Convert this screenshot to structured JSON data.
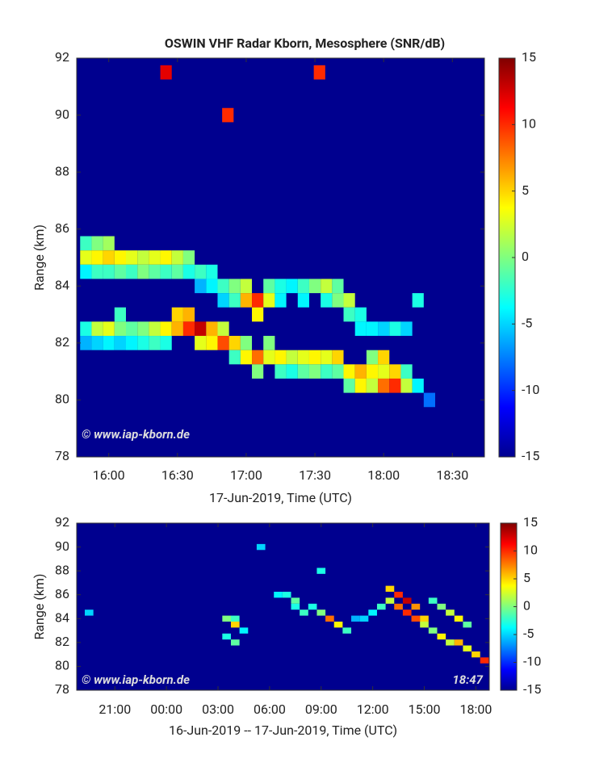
{
  "chart_data": [
    {
      "type": "heatmap",
      "title": "OSWIN VHF Radar Kborn, Mesosphere (SNR/dB)",
      "xlabel": "17-Jun-2019, Time (UTC)",
      "ylabel": "Range (km)",
      "xlim": [
        946,
        1124
      ],
      "xticks": [
        {
          "value": 960,
          "label": "16:00"
        },
        {
          "value": 990,
          "label": "16:30"
        },
        {
          "value": 1020,
          "label": "17:00"
        },
        {
          "value": 1050,
          "label": "17:30"
        },
        {
          "value": 1080,
          "label": "18:00"
        },
        {
          "value": 1110,
          "label": "18:30"
        }
      ],
      "ylim": [
        78,
        92
      ],
      "yticks": [
        78,
        80,
        82,
        84,
        86,
        88,
        90,
        92
      ],
      "clim": [
        -15,
        15
      ],
      "cticks": [
        -15,
        -10,
        -5,
        0,
        5,
        10,
        15
      ],
      "annotations": [
        "© www.iap-kborn.de"
      ],
      "cells": [
        [
          950,
          85.5,
          -2
        ],
        [
          950,
          85,
          3
        ],
        [
          950,
          84.5,
          -4
        ],
        [
          950,
          82.5,
          -3
        ],
        [
          950,
          82,
          -6
        ],
        [
          955,
          85.5,
          0
        ],
        [
          955,
          85,
          4
        ],
        [
          955,
          84.5,
          -2
        ],
        [
          955,
          82.5,
          2
        ],
        [
          955,
          82,
          -5
        ],
        [
          960,
          85.5,
          1
        ],
        [
          960,
          85,
          5
        ],
        [
          960,
          84.5,
          -2
        ],
        [
          960,
          82.5,
          3
        ],
        [
          960,
          82,
          -4
        ],
        [
          965,
          85,
          4
        ],
        [
          965,
          84.5,
          -1
        ],
        [
          965,
          83,
          -2
        ],
        [
          965,
          82.5,
          0
        ],
        [
          965,
          82,
          -5
        ],
        [
          970,
          85,
          3
        ],
        [
          970,
          84.5,
          -2
        ],
        [
          970,
          82.5,
          -1
        ],
        [
          970,
          82,
          -4
        ],
        [
          975,
          85,
          2
        ],
        [
          975,
          84.5,
          0
        ],
        [
          975,
          82.5,
          0
        ],
        [
          975,
          82,
          -3
        ],
        [
          980,
          85,
          3
        ],
        [
          980,
          84.5,
          -1
        ],
        [
          980,
          82.5,
          2
        ],
        [
          980,
          82,
          -2
        ],
        [
          985,
          85,
          4
        ],
        [
          985,
          84.5,
          -2
        ],
        [
          985,
          82.5,
          4
        ],
        [
          985,
          82,
          -3
        ],
        [
          990,
          85,
          2
        ],
        [
          990,
          84.5,
          -1
        ],
        [
          990,
          83,
          5
        ],
        [
          990,
          82.5,
          6
        ],
        [
          995,
          85,
          0
        ],
        [
          995,
          84.5,
          -3
        ],
        [
          995,
          83,
          6
        ],
        [
          995,
          82.5,
          10
        ],
        [
          1000,
          84.5,
          -2
        ],
        [
          1000,
          84,
          -6
        ],
        [
          1000,
          82.5,
          13
        ],
        [
          1000,
          82,
          3
        ],
        [
          1005,
          84.5,
          -3
        ],
        [
          1005,
          84,
          -4
        ],
        [
          1005,
          82.5,
          6
        ],
        [
          1005,
          82,
          4
        ],
        [
          1010,
          84,
          -2
        ],
        [
          1010,
          83.5,
          -5
        ],
        [
          1010,
          82.5,
          2
        ],
        [
          1010,
          82,
          9
        ],
        [
          1015,
          84,
          0
        ],
        [
          1015,
          83.5,
          -2
        ],
        [
          1015,
          82,
          5
        ],
        [
          1015,
          81.5,
          -2
        ],
        [
          1020,
          84,
          2
        ],
        [
          1020,
          83.5,
          6
        ],
        [
          1020,
          82,
          0
        ],
        [
          1020,
          81.5,
          4
        ],
        [
          1025,
          83.5,
          10
        ],
        [
          1025,
          83,
          4
        ],
        [
          1025,
          81.5,
          8
        ],
        [
          1025,
          81,
          0
        ],
        [
          1030,
          84,
          -1
        ],
        [
          1030,
          83.5,
          3
        ],
        [
          1030,
          82,
          0
        ],
        [
          1030,
          81.5,
          3
        ],
        [
          1035,
          84,
          -3
        ],
        [
          1035,
          83.5,
          -4
        ],
        [
          1035,
          81.5,
          4
        ],
        [
          1035,
          81,
          -2
        ],
        [
          1040,
          84,
          -4
        ],
        [
          1040,
          81.5,
          2
        ],
        [
          1040,
          81,
          -3
        ],
        [
          1045,
          84,
          -2
        ],
        [
          1045,
          83.5,
          -4
        ],
        [
          1045,
          81.5,
          3
        ],
        [
          1045,
          81,
          -1
        ],
        [
          1050,
          84,
          0
        ],
        [
          1050,
          81.5,
          4
        ],
        [
          1050,
          81,
          0
        ],
        [
          1055,
          84,
          2
        ],
        [
          1055,
          83.5,
          -3
        ],
        [
          1055,
          81.5,
          3
        ],
        [
          1055,
          81,
          -2
        ],
        [
          1060,
          84,
          -1
        ],
        [
          1060,
          83.5,
          0
        ],
        [
          1060,
          81.5,
          5
        ],
        [
          1060,
          81,
          -1
        ],
        [
          1065,
          83.5,
          2
        ],
        [
          1065,
          83,
          -2
        ],
        [
          1065,
          81,
          4
        ],
        [
          1065,
          80.5,
          -1
        ],
        [
          1070,
          83,
          -3
        ],
        [
          1070,
          82.5,
          -4
        ],
        [
          1070,
          81,
          6
        ],
        [
          1070,
          80.5,
          4
        ],
        [
          1075,
          82.5,
          -4
        ],
        [
          1075,
          81.5,
          0
        ],
        [
          1075,
          81,
          4
        ],
        [
          1075,
          80.5,
          2
        ],
        [
          1080,
          82.5,
          -5
        ],
        [
          1080,
          81.5,
          5
        ],
        [
          1080,
          81,
          3
        ],
        [
          1080,
          80.5,
          8
        ],
        [
          1085,
          82.5,
          -3
        ],
        [
          1085,
          81,
          5
        ],
        [
          1085,
          80.5,
          10
        ],
        [
          1090,
          82.5,
          -5
        ],
        [
          1090,
          81,
          -2
        ],
        [
          1090,
          80.5,
          2
        ],
        [
          1095,
          80.5,
          -4
        ],
        [
          1100,
          80,
          -8
        ],
        [
          985,
          91.5,
          12
        ],
        [
          1052,
          91.5,
          10
        ],
        [
          1012,
          90,
          10
        ],
        [
          1095,
          83.5,
          -3
        ]
      ]
    },
    {
      "type": "heatmap",
      "xlabel": "16-Jun-2019 -- 17-Jun-2019, Time (UTC)",
      "ylabel": "Range (km)",
      "xlim": [
        18.78,
        42.78
      ],
      "xticks": [
        {
          "value": 21,
          "label": "21:00"
        },
        {
          "value": 24,
          "label": "00:00"
        },
        {
          "value": 27,
          "label": "03:00"
        },
        {
          "value": 30,
          "label": "06:00"
        },
        {
          "value": 33,
          "label": "09:00"
        },
        {
          "value": 36,
          "label": "12:00"
        },
        {
          "value": 39,
          "label": "15:00"
        },
        {
          "value": 42,
          "label": "18:00"
        }
      ],
      "ylim": [
        78,
        92
      ],
      "yticks": [
        78,
        80,
        82,
        84,
        86,
        88,
        90,
        92
      ],
      "clim": [
        -15,
        15
      ],
      "cticks": [
        -15,
        -10,
        -5,
        0,
        5,
        10,
        15
      ],
      "annotations": [
        "© www.iap-kborn.de",
        "18:47"
      ],
      "cells": [
        [
          19.5,
          84.5,
          -5
        ],
        [
          27.5,
          84,
          0
        ],
        [
          28,
          83.5,
          5
        ],
        [
          28,
          84,
          -2
        ],
        [
          27.5,
          82.5,
          -3
        ],
        [
          28,
          82,
          -1
        ],
        [
          28.5,
          83,
          -4
        ],
        [
          30.5,
          86,
          -4
        ],
        [
          31,
          86,
          -3
        ],
        [
          31.5,
          85.5,
          -1
        ],
        [
          31.5,
          85,
          -3
        ],
        [
          32,
          84.5,
          -2
        ],
        [
          32.5,
          85,
          -3
        ],
        [
          33,
          84.5,
          0
        ],
        [
          33.5,
          84,
          8
        ],
        [
          34,
          83.5,
          4
        ],
        [
          34.5,
          83,
          -2
        ],
        [
          35,
          84,
          -6
        ],
        [
          35.5,
          84,
          -5
        ],
        [
          36,
          84.5,
          -4
        ],
        [
          36.5,
          85,
          -2
        ],
        [
          37,
          86.5,
          5
        ],
        [
          37,
          85.5,
          2
        ],
        [
          37.5,
          86,
          10
        ],
        [
          37.5,
          85,
          8
        ],
        [
          38,
          85.5,
          13
        ],
        [
          38,
          84.5,
          10
        ],
        [
          38.5,
          85,
          7
        ],
        [
          38.5,
          84,
          9
        ],
        [
          39,
          84,
          5
        ],
        [
          39,
          83.5,
          2
        ],
        [
          39.5,
          85.5,
          -2
        ],
        [
          40,
          85,
          0
        ],
        [
          40.5,
          84.5,
          2
        ],
        [
          41,
          84,
          4
        ],
        [
          41.5,
          83.5,
          -1
        ],
        [
          39.5,
          83,
          0
        ],
        [
          40,
          82.5,
          4
        ],
        [
          40.5,
          82,
          2
        ],
        [
          41,
          82,
          6
        ],
        [
          41.5,
          81.5,
          3
        ],
        [
          42,
          81,
          5
        ],
        [
          42.5,
          80.5,
          10
        ],
        [
          29.5,
          90,
          -5
        ],
        [
          33,
          88,
          -3
        ]
      ]
    }
  ]
}
